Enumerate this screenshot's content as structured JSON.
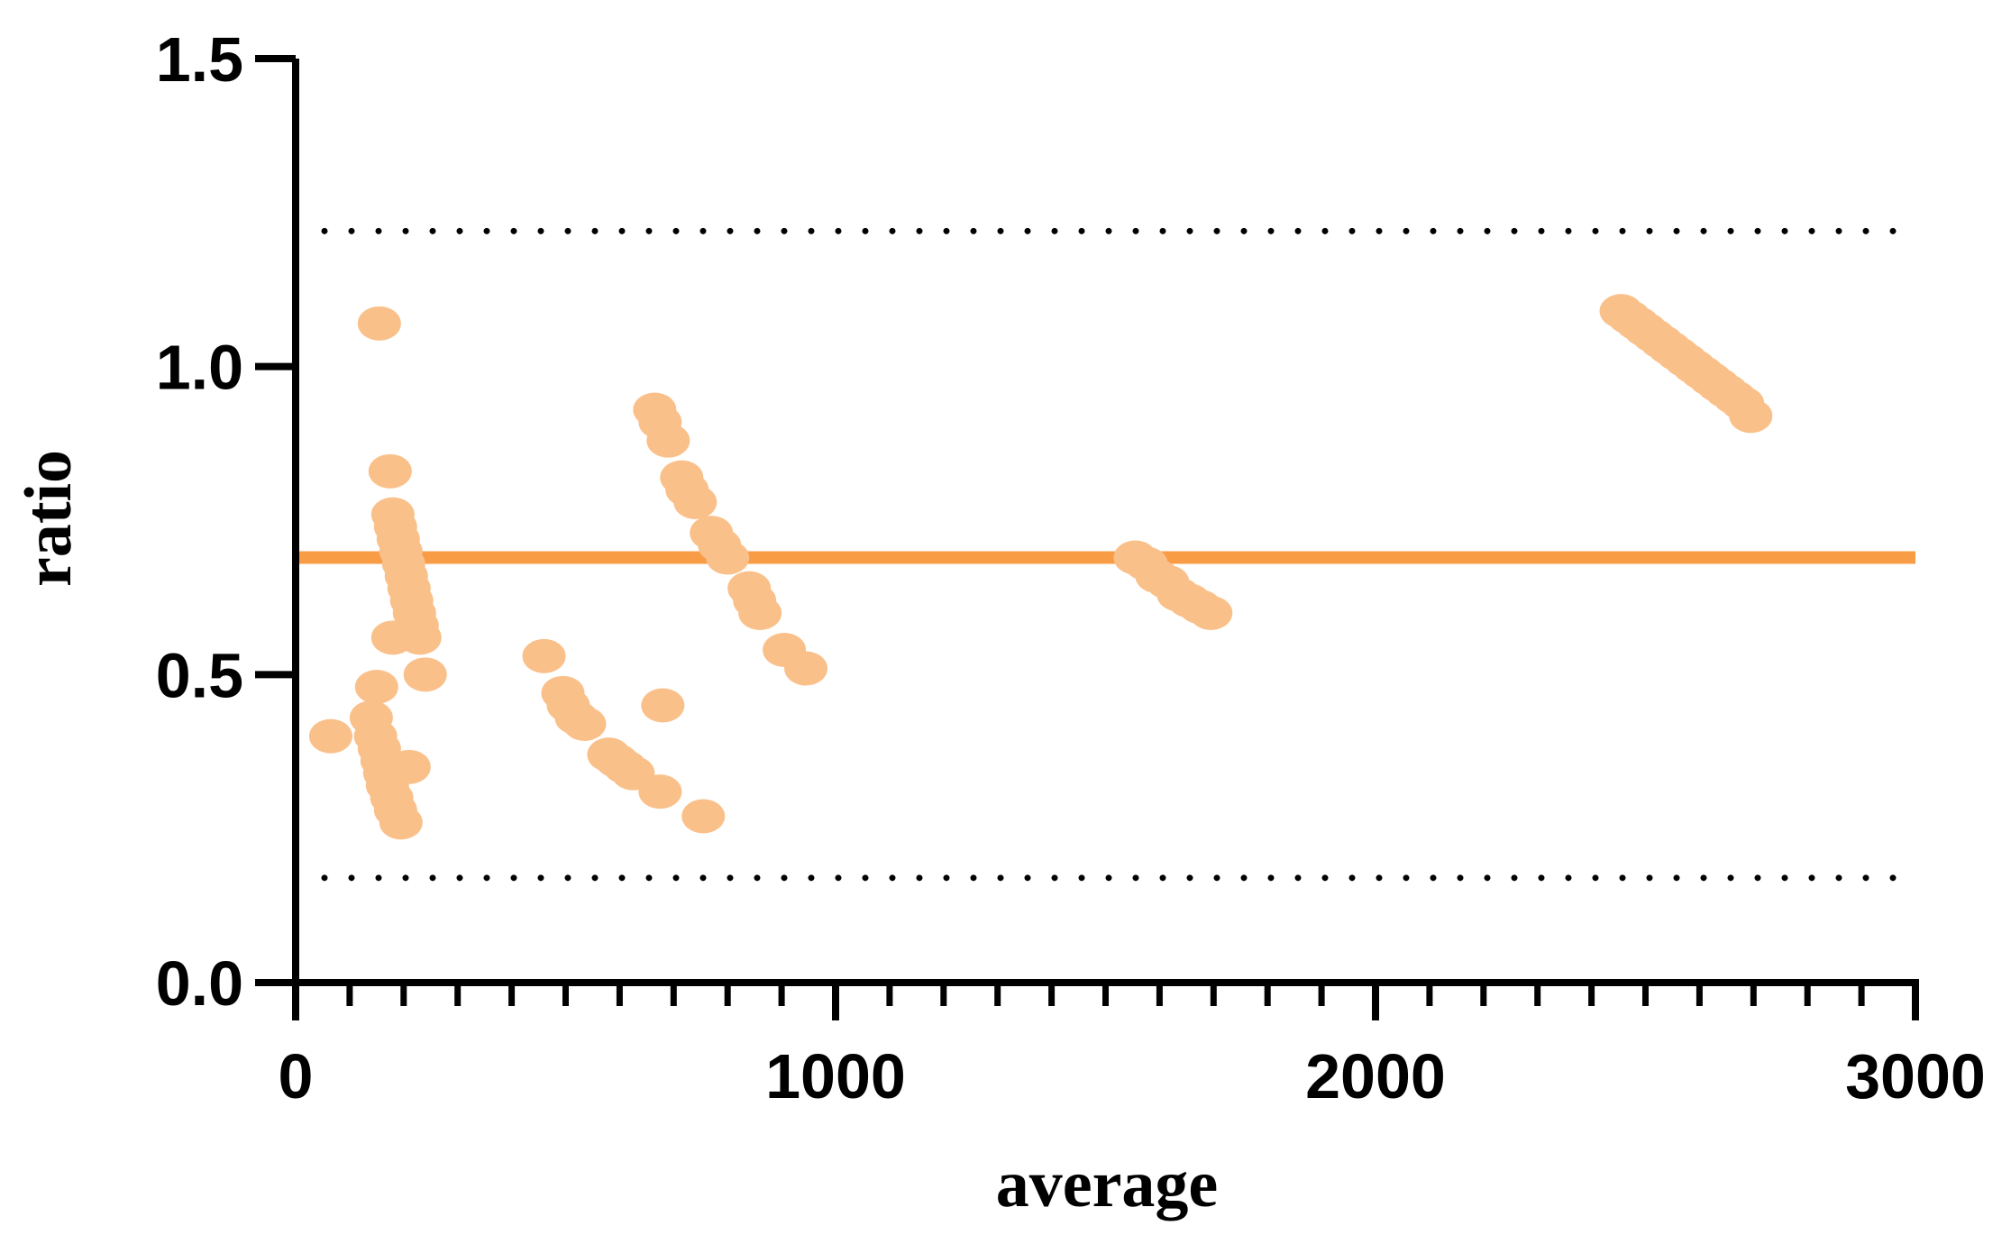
{
  "chart_data": {
    "type": "scatter",
    "title": "",
    "xlabel": "average",
    "ylabel": "ratio",
    "xlim": [
      0,
      3000
    ],
    "ylim": [
      0,
      1.5
    ],
    "x_ticks": [
      {
        "value": 0,
        "label": "0"
      },
      {
        "value": 1000,
        "label": "1000"
      },
      {
        "value": 2000,
        "label": "2000"
      },
      {
        "value": 3000,
        "label": "3000"
      }
    ],
    "y_ticks": [
      {
        "value": 0,
        "label": "0.0"
      },
      {
        "value": 0.5,
        "label": "0.5"
      },
      {
        "value": 1.0,
        "label": "1.0"
      },
      {
        "value": 1.5,
        "label": "1.5"
      }
    ],
    "x_minor_step": 100,
    "grid": false,
    "legend": "none",
    "mean_line": {
      "value": 0.69,
      "color": "#F89C45"
    },
    "limits_of_agreement": [
      {
        "name": "upper",
        "value": 1.22
      },
      {
        "name": "lower",
        "value": 0.17
      }
    ],
    "point_color": "#FAC08A",
    "points": [
      [
        65,
        0.4
      ],
      [
        150,
        0.48
      ],
      [
        155,
        1.07
      ],
      [
        140,
        0.43
      ],
      [
        148,
        0.4
      ],
      [
        155,
        0.38
      ],
      [
        160,
        0.36
      ],
      [
        165,
        0.34
      ],
      [
        170,
        0.32
      ],
      [
        178,
        0.3
      ],
      [
        185,
        0.28
      ],
      [
        195,
        0.26
      ],
      [
        210,
        0.35
      ],
      [
        175,
        0.83
      ],
      [
        180,
        0.76
      ],
      [
        185,
        0.74
      ],
      [
        190,
        0.72
      ],
      [
        195,
        0.7
      ],
      [
        200,
        0.68
      ],
      [
        205,
        0.66
      ],
      [
        210,
        0.64
      ],
      [
        215,
        0.62
      ],
      [
        220,
        0.6
      ],
      [
        225,
        0.58
      ],
      [
        230,
        0.56
      ],
      [
        180,
        0.56
      ],
      [
        240,
        0.5
      ],
      [
        460,
        0.53
      ],
      [
        495,
        0.47
      ],
      [
        505,
        0.45
      ],
      [
        520,
        0.43
      ],
      [
        535,
        0.42
      ],
      [
        580,
        0.37
      ],
      [
        595,
        0.36
      ],
      [
        610,
        0.35
      ],
      [
        625,
        0.34
      ],
      [
        675,
        0.31
      ],
      [
        680,
        0.45
      ],
      [
        755,
        0.27
      ],
      [
        665,
        0.93
      ],
      [
        675,
        0.91
      ],
      [
        690,
        0.88
      ],
      [
        715,
        0.82
      ],
      [
        725,
        0.8
      ],
      [
        740,
        0.78
      ],
      [
        770,
        0.73
      ],
      [
        785,
        0.71
      ],
      [
        800,
        0.69
      ],
      [
        840,
        0.64
      ],
      [
        850,
        0.62
      ],
      [
        860,
        0.6
      ],
      [
        905,
        0.54
      ],
      [
        945,
        0.51
      ],
      [
        1555,
        0.69
      ],
      [
        1575,
        0.68
      ],
      [
        1595,
        0.66
      ],
      [
        1615,
        0.65
      ],
      [
        1635,
        0.63
      ],
      [
        1655,
        0.62
      ],
      [
        1675,
        0.61
      ],
      [
        1695,
        0.6
      ],
      [
        2455,
        1.09
      ],
      [
        2470,
        1.08
      ],
      [
        2485,
        1.07
      ],
      [
        2500,
        1.06
      ],
      [
        2515,
        1.05
      ],
      [
        2530,
        1.04
      ],
      [
        2545,
        1.03
      ],
      [
        2560,
        1.02
      ],
      [
        2575,
        1.01
      ],
      [
        2590,
        1.0
      ],
      [
        2605,
        0.99
      ],
      [
        2620,
        0.98
      ],
      [
        2635,
        0.97
      ],
      [
        2650,
        0.96
      ],
      [
        2665,
        0.95
      ],
      [
        2680,
        0.94
      ],
      [
        2695,
        0.92
      ]
    ]
  }
}
